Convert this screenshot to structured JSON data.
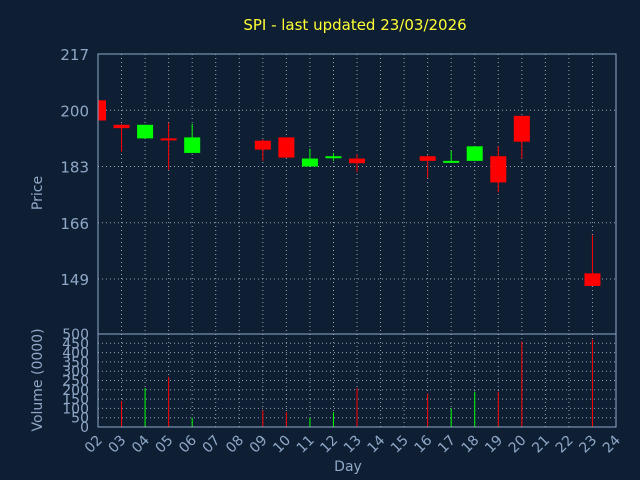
{
  "chart_data": {
    "type": "candlestick",
    "title": "SPI - last updated 23/03/2026",
    "xlabel": "Day",
    "price_ylabel": "Price",
    "volume_ylabel": "Volume (0000)",
    "categories": [
      "02",
      "03",
      "04",
      "05",
      "06",
      "07",
      "08",
      "09",
      "10",
      "11",
      "12",
      "13",
      "14",
      "15",
      "16",
      "17",
      "18",
      "19",
      "20",
      "21",
      "22",
      "23",
      "24"
    ],
    "price_axis": {
      "ylim": [
        217,
        149
      ],
      "ticks": [
        217,
        200,
        183,
        166,
        149
      ]
    },
    "volume_axis": {
      "ylim": [
        0,
        500
      ],
      "ticks": [
        0,
        50,
        100,
        150,
        200,
        250,
        300,
        350,
        400,
        450,
        500
      ]
    },
    "colors": {
      "up": "#00ff00",
      "down": "#ff0000",
      "title": "#ffff33",
      "axis": "#8fa8c8",
      "background": "#0f1f33"
    },
    "grid": true,
    "candles": [
      {
        "day": "02",
        "open": 203.0,
        "high": 203.0,
        "low": 196.9,
        "close": 196.9,
        "volume": 0
      },
      {
        "day": "03",
        "open": 195.6,
        "high": 195.9,
        "low": 187.5,
        "close": 194.6,
        "volume": 140
      },
      {
        "day": "04",
        "open": 191.5,
        "high": 195.6,
        "low": 191.5,
        "close": 195.6,
        "volume": 210
      },
      {
        "day": "05",
        "open": 191.5,
        "high": 196.2,
        "low": 182.0,
        "close": 191.2,
        "volume": 270
      },
      {
        "day": "06",
        "open": 187.1,
        "high": 195.9,
        "low": 187.1,
        "close": 191.8,
        "volume": 50
      },
      {
        "day": "09",
        "open": 190.8,
        "high": 191.2,
        "low": 184.7,
        "close": 188.1,
        "volume": 90
      },
      {
        "day": "10",
        "open": 191.8,
        "high": 191.8,
        "low": 185.7,
        "close": 185.7,
        "volume": 80
      },
      {
        "day": "11",
        "open": 183.0,
        "high": 188.4,
        "low": 183.0,
        "close": 185.4,
        "volume": 50
      },
      {
        "day": "12",
        "open": 185.7,
        "high": 187.1,
        "low": 184.7,
        "close": 186.1,
        "volume": 80
      },
      {
        "day": "13",
        "open": 185.4,
        "high": 186.7,
        "low": 181.3,
        "close": 184.0,
        "volume": 210
      },
      {
        "day": "16",
        "open": 186.1,
        "high": 186.4,
        "low": 179.6,
        "close": 184.7,
        "volume": 180
      },
      {
        "day": "17",
        "open": 184.4,
        "high": 187.8,
        "low": 184.4,
        "close": 184.7,
        "volume": 100
      },
      {
        "day": "18",
        "open": 184.7,
        "high": 189.1,
        "low": 184.7,
        "close": 189.1,
        "volume": 190
      },
      {
        "day": "19",
        "open": 186.1,
        "high": 189.1,
        "low": 175.2,
        "close": 178.2,
        "volume": 190
      },
      {
        "day": "20",
        "open": 198.3,
        "high": 198.3,
        "low": 185.4,
        "close": 190.5,
        "volume": 460
      },
      {
        "day": "23",
        "open": 150.7,
        "high": 162.2,
        "low": 146.9,
        "close": 146.9,
        "volume": 470
      }
    ]
  }
}
